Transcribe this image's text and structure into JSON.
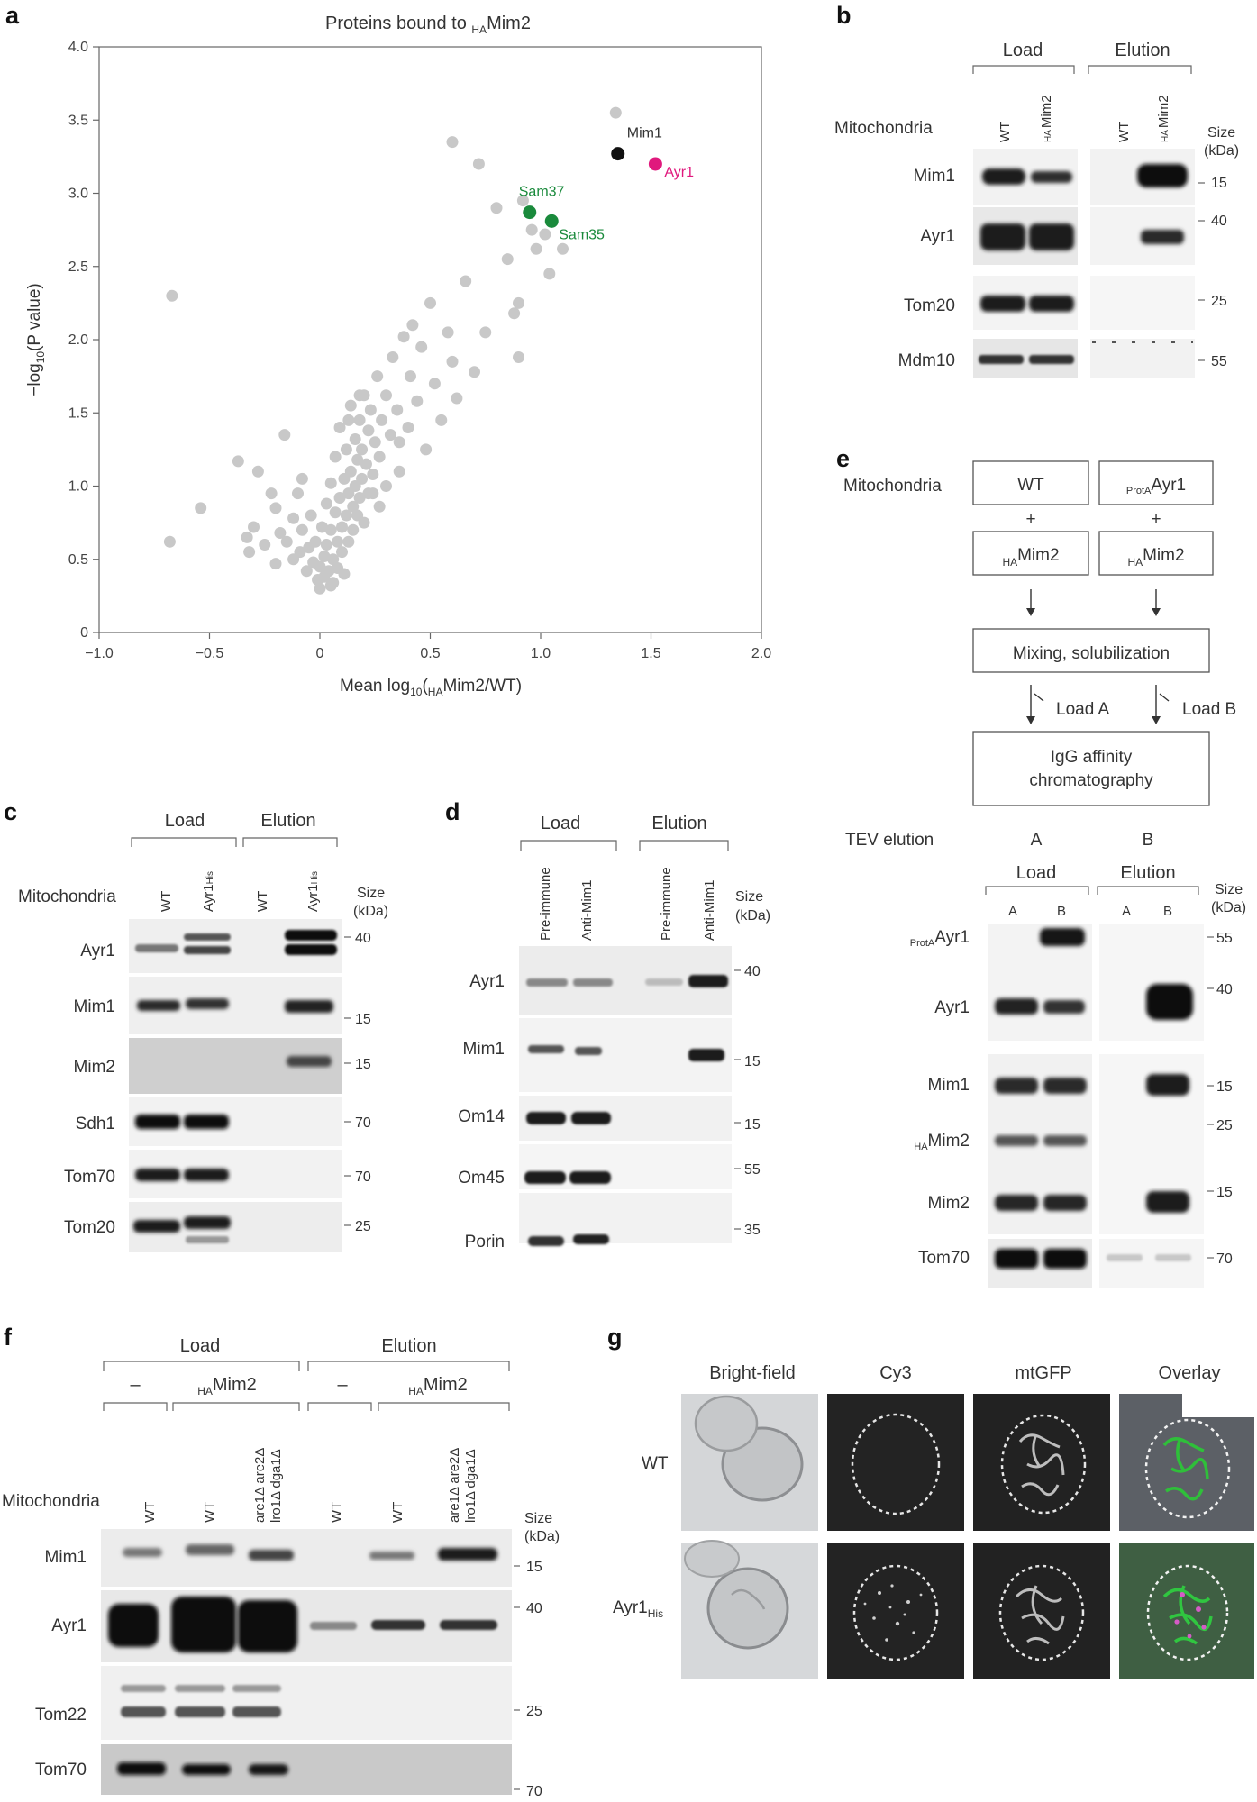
{
  "panels": {
    "a": {
      "label": "a",
      "title_main": "Proteins bound to ",
      "title_sub": "HA",
      "title_end": "Mim2",
      "chart_data": {
        "type": "scatter",
        "xlabel_main": "Mean log",
        "xlabel_sub": "10",
        "xlabel_mid": "(",
        "xlabel_sub2": "HA",
        "xlabel_end": "Mim2/WT)",
        "ylabel_main": "−log",
        "ylabel_sub": "10",
        "ylabel_end": "(P value)",
        "xlim": [
          -1.0,
          2.0
        ],
        "ylim": [
          0,
          4.0
        ],
        "xticks": [
          "−1.0",
          "−0.5",
          "0",
          "0.5",
          "1.0",
          "1.5",
          "2.0"
        ],
        "yticks": [
          "0",
          "0.5",
          "1.0",
          "1.5",
          "2.0",
          "2.5",
          "3.0",
          "3.5",
          "4.0"
        ],
        "grid": false,
        "highlights": [
          {
            "name": "Mim1",
            "x": 1.35,
            "y": 3.27,
            "color": "#111111"
          },
          {
            "name": "Ayr1",
            "x": 1.52,
            "y": 3.2,
            "color": "#e0197d"
          },
          {
            "name": "Sam37",
            "x": 0.95,
            "y": 2.87,
            "color": "#1a8a3c"
          },
          {
            "name": "Sam35",
            "x": 1.05,
            "y": 2.81,
            "color": "#1a8a3c"
          }
        ],
        "background_points": [
          [
            -0.68,
            0.62
          ],
          [
            -0.67,
            2.3
          ],
          [
            -0.54,
            0.85
          ],
          [
            -0.37,
            1.17
          ],
          [
            -0.33,
            0.65
          ],
          [
            -0.32,
            0.55
          ],
          [
            -0.3,
            0.72
          ],
          [
            -0.28,
            1.1
          ],
          [
            -0.25,
            0.6
          ],
          [
            -0.22,
            0.95
          ],
          [
            -0.2,
            0.85
          ],
          [
            -0.2,
            0.47
          ],
          [
            -0.18,
            0.68
          ],
          [
            -0.16,
            1.35
          ],
          [
            -0.15,
            0.62
          ],
          [
            -0.12,
            0.78
          ],
          [
            -0.12,
            0.5
          ],
          [
            -0.1,
            0.95
          ],
          [
            -0.08,
            1.05
          ],
          [
            -0.08,
            0.7
          ],
          [
            -0.06,
            0.42
          ],
          [
            -0.05,
            0.58
          ],
          [
            -0.04,
            0.8
          ],
          [
            -0.03,
            0.48
          ],
          [
            -0.02,
            0.62
          ],
          [
            -0.01,
            0.36
          ],
          [
            0.0,
            0.45
          ],
          [
            0.0,
            0.3
          ],
          [
            0.01,
            0.72
          ],
          [
            0.02,
            0.52
          ],
          [
            0.02,
            0.38
          ],
          [
            0.03,
            0.88
          ],
          [
            0.03,
            0.6
          ],
          [
            0.04,
            0.42
          ],
          [
            0.05,
            1.02
          ],
          [
            0.05,
            0.7
          ],
          [
            0.06,
            0.5
          ],
          [
            0.06,
            0.34
          ],
          [
            0.07,
            0.82
          ],
          [
            0.07,
            1.2
          ],
          [
            0.08,
            0.62
          ],
          [
            0.08,
            0.44
          ],
          [
            0.09,
            0.92
          ],
          [
            0.09,
            1.4
          ],
          [
            0.1,
            0.72
          ],
          [
            0.1,
            0.55
          ],
          [
            0.11,
            1.05
          ],
          [
            0.11,
            0.4
          ],
          [
            0.12,
            0.8
          ],
          [
            0.12,
            1.25
          ],
          [
            0.13,
            0.95
          ],
          [
            0.13,
            0.62
          ],
          [
            0.14,
            1.55
          ],
          [
            0.14,
            1.1
          ],
          [
            0.15,
            0.86
          ],
          [
            0.15,
            0.7
          ],
          [
            0.16,
            1.32
          ],
          [
            0.16,
            1.0
          ],
          [
            0.17,
            1.18
          ],
          [
            0.17,
            0.8
          ],
          [
            0.18,
            1.45
          ],
          [
            0.18,
            0.92
          ],
          [
            0.19,
            1.05
          ],
          [
            0.19,
            1.25
          ],
          [
            0.2,
            1.62
          ],
          [
            0.2,
            0.75
          ],
          [
            0.21,
            1.15
          ],
          [
            0.22,
            1.38
          ],
          [
            0.22,
            0.95
          ],
          [
            0.23,
            1.52
          ],
          [
            0.24,
            1.08
          ],
          [
            0.25,
            1.3
          ],
          [
            0.26,
            1.75
          ],
          [
            0.27,
            1.2
          ],
          [
            0.28,
            1.45
          ],
          [
            0.3,
            1.62
          ],
          [
            0.3,
            1.0
          ],
          [
            0.32,
            1.35
          ],
          [
            0.33,
            1.88
          ],
          [
            0.35,
            1.52
          ],
          [
            0.36,
            1.1
          ],
          [
            0.38,
            2.02
          ],
          [
            0.4,
            1.4
          ],
          [
            0.41,
            1.75
          ],
          [
            0.42,
            2.1
          ],
          [
            0.44,
            1.58
          ],
          [
            0.46,
            1.95
          ],
          [
            0.48,
            1.25
          ],
          [
            0.5,
            2.25
          ],
          [
            0.52,
            1.7
          ],
          [
            0.55,
            1.45
          ],
          [
            0.58,
            2.05
          ],
          [
            0.6,
            1.85
          ],
          [
            0.6,
            3.35
          ],
          [
            0.62,
            1.6
          ],
          [
            0.66,
            2.4
          ],
          [
            0.7,
            1.78
          ],
          [
            0.72,
            3.2
          ],
          [
            0.75,
            2.05
          ],
          [
            0.8,
            2.9
          ],
          [
            0.85,
            2.55
          ],
          [
            0.88,
            2.18
          ],
          [
            0.9,
            2.25
          ],
          [
            0.9,
            1.88
          ],
          [
            0.92,
            2.95
          ],
          [
            0.96,
            2.75
          ],
          [
            0.98,
            2.62
          ],
          [
            1.02,
            2.72
          ],
          [
            1.04,
            2.45
          ],
          [
            1.1,
            2.62
          ],
          [
            1.34,
            3.55
          ],
          [
            0.24,
            0.95
          ],
          [
            0.05,
            0.32
          ],
          [
            0.27,
            0.86
          ],
          [
            0.13,
            1.45
          ],
          [
            -0.09,
            0.55
          ],
          [
            0.18,
            1.62
          ],
          [
            0.36,
            1.3
          ]
        ]
      }
    },
    "b": {
      "label": "b",
      "group_load": "Load",
      "group_elution": "Elution",
      "row_header": "Mitochondria",
      "lanes": [
        "WT",
        "Mim2",
        "WT",
        "Mim2"
      ],
      "lane_sub": "HA",
      "size_label": "Size",
      "size_unit": "(kDa)",
      "rows": [
        {
          "name": "Mim1",
          "size": "15"
        },
        {
          "name": "Ayr1",
          "size": "40"
        },
        {
          "name": "Tom20",
          "size": "25"
        },
        {
          "name": "Mdm10",
          "size": "55"
        }
      ]
    },
    "c": {
      "label": "c",
      "group_load": "Load",
      "group_elution": "Elution",
      "row_header": "Mitochondria",
      "lanes": [
        "WT",
        "Ayr1",
        "WT",
        "Ayr1"
      ],
      "lane_sub": "His",
      "size_label": "Size",
      "size_unit": "(kDa)",
      "rows": [
        {
          "name": "Ayr1",
          "size": "40"
        },
        {
          "name": "Mim1",
          "size": "15"
        },
        {
          "name": "Mim2",
          "size": "15"
        },
        {
          "name": "Sdh1",
          "size": "70"
        },
        {
          "name": "Tom70",
          "size": "70"
        },
        {
          "name": "Tom20",
          "size": "25"
        }
      ]
    },
    "d": {
      "label": "d",
      "group_load": "Load",
      "group_elution": "Elution",
      "lanes": [
        "Pre-immune",
        "Anti-Mim1",
        "Pre-immune",
        "Anti-Mim1"
      ],
      "size_label": "Size",
      "size_unit": "(kDa)",
      "rows": [
        {
          "name": "Ayr1",
          "size": "40"
        },
        {
          "name": "Mim1",
          "size": "15"
        },
        {
          "name": "Om14",
          "size": "15"
        },
        {
          "name": "Om45",
          "size": "55"
        },
        {
          "name": "Porin",
          "size": "35"
        }
      ]
    },
    "e": {
      "label": "e",
      "row_header": "Mitochondria",
      "box_wt": "WT",
      "box_prota_sub": "ProtA",
      "box_prota_main": "Ayr1",
      "plus": "+",
      "box_mim2_sub": "HA",
      "box_mim2_main": "Mim2",
      "box_mix": "Mixing, solubilization",
      "load_a": "Load A",
      "load_b": "Load B",
      "box_igg_line1": "IgG affinity",
      "box_igg_line2": "chromatography",
      "tev_label": "TEV elution",
      "tev_a": "A",
      "tev_b": "B",
      "group_load": "Load",
      "group_elution": "Elution",
      "lanes": [
        "A",
        "B",
        "A",
        "B"
      ],
      "size_label": "Size",
      "size_unit": "(kDa)",
      "rows": [
        {
          "sub": "ProtA",
          "name": "Ayr1",
          "size": "55"
        },
        {
          "sub": "",
          "name": "Ayr1",
          "size": "40"
        },
        {
          "sub": "",
          "name": "Mim1",
          "size": "15"
        },
        {
          "sub": "HA",
          "name": "Mim2",
          "size": "25"
        },
        {
          "sub": "",
          "name": "Mim2",
          "size": "15"
        },
        {
          "sub": "",
          "name": "Tom70",
          "size": "70"
        }
      ]
    },
    "f": {
      "label": "f",
      "group_load": "Load",
      "group_elution": "Elution",
      "dash": "–",
      "ha_sub": "HA",
      "ha_main": "Mim2",
      "row_header": "Mitochondria",
      "lanes": [
        "WT",
        "WT",
        "are1Δ are2Δ",
        "WT",
        "WT",
        "are1Δ are2Δ"
      ],
      "lanes_line2": [
        "",
        "",
        "lro1Δ dga1Δ",
        "",
        "",
        "lro1Δ dga1Δ"
      ],
      "size_label": "Size",
      "size_unit": "(kDa)",
      "rows": [
        {
          "name": "Mim1",
          "size": "15"
        },
        {
          "name": "Ayr1",
          "size": "40"
        },
        {
          "name": "Tom22",
          "size": "25"
        },
        {
          "name": "Tom70",
          "size": "70"
        }
      ]
    },
    "g": {
      "label": "g",
      "columns": [
        "Bright-field",
        "Cy3",
        "mtGFP",
        "Overlay"
      ],
      "row_wt": "WT",
      "row_ayr1_main": "Ayr1",
      "row_ayr1_sub": "His"
    }
  },
  "colors": {
    "point_gray": "#c8c8c8",
    "mim1": "#111111",
    "ayr1": "#e0197d",
    "sam": "#1a8a3c",
    "blot_bg": "#efefef",
    "band": "#1c1c1c",
    "micro_dark": "#232323"
  }
}
